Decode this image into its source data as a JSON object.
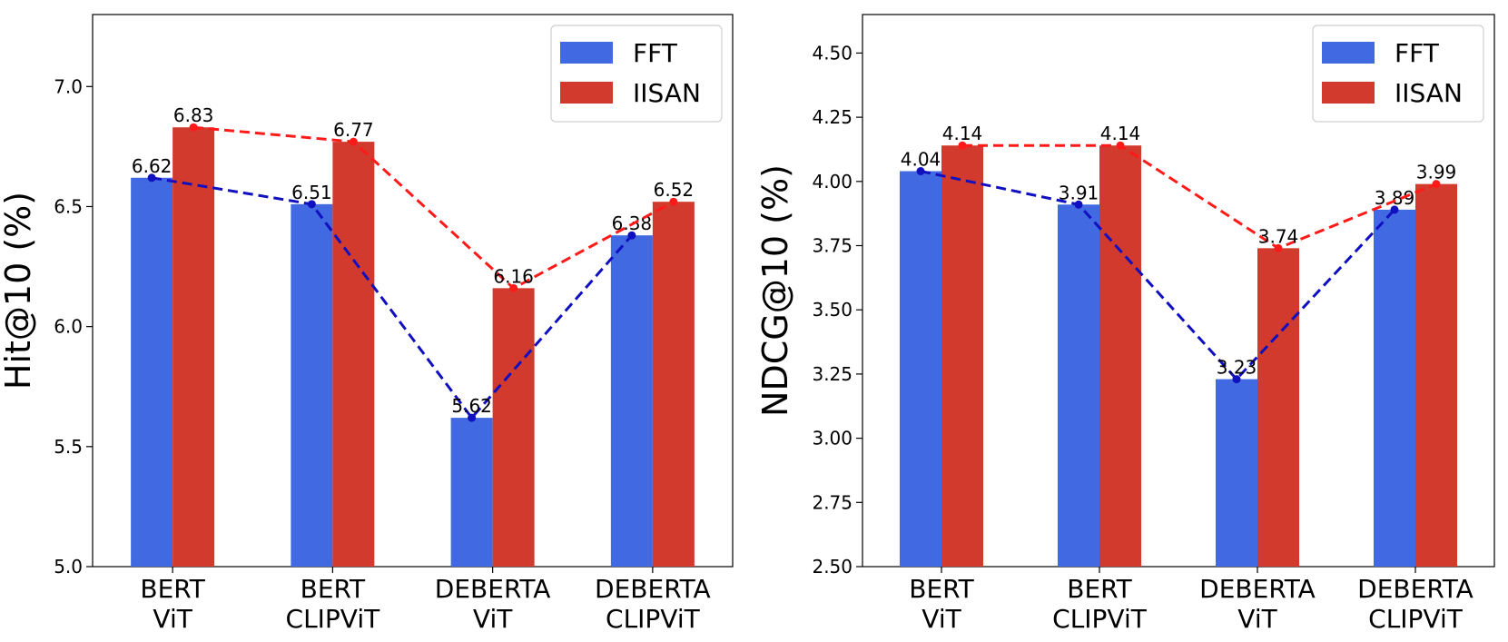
{
  "chart_data": [
    {
      "type": "bar",
      "title": "",
      "xlabel": "",
      "ylabel": "Hit@10 (%)",
      "ylim": [
        5.0,
        7.3
      ],
      "yticks": [
        "5.0",
        "5.5",
        "6.0",
        "6.5",
        "7.0"
      ],
      "categories": [
        [
          "BERT",
          "ViT"
        ],
        [
          "BERT",
          "CLIPViT"
        ],
        [
          "DEBERTA",
          "ViT"
        ],
        [
          "DEBERTA",
          "CLIPViT"
        ]
      ],
      "series": [
        {
          "name": "FFT",
          "values": [
            6.62,
            6.51,
            5.62,
            6.38
          ],
          "labels": [
            "6.62",
            "6.51",
            "5.62",
            "6.38"
          ],
          "color": "#4169e1",
          "line_color": "#1010c0"
        },
        {
          "name": "IISAN",
          "values": [
            6.83,
            6.77,
            6.16,
            6.52
          ],
          "labels": [
            "6.83",
            "6.77",
            "6.16",
            "6.52"
          ],
          "color": "#d13a2c",
          "line_color": "#ff1a1a"
        }
      ],
      "legend": "top-right"
    },
    {
      "type": "bar",
      "title": "",
      "xlabel": "",
      "ylabel": "NDCG@10 (%)",
      "ylim": [
        2.5,
        4.65
      ],
      "yticks": [
        "2.50",
        "2.75",
        "3.00",
        "3.25",
        "3.50",
        "3.75",
        "4.00",
        "4.25",
        "4.50"
      ],
      "categories": [
        [
          "BERT",
          "ViT"
        ],
        [
          "BERT",
          "CLIPViT"
        ],
        [
          "DEBERTA",
          "ViT"
        ],
        [
          "DEBERTA",
          "CLIPViT"
        ]
      ],
      "series": [
        {
          "name": "FFT",
          "values": [
            4.04,
            3.91,
            3.23,
            3.89
          ],
          "labels": [
            "4.04",
            "3.91",
            "3.23",
            "3.89"
          ],
          "color": "#4169e1",
          "line_color": "#1010c0"
        },
        {
          "name": "IISAN",
          "values": [
            4.14,
            4.14,
            3.74,
            3.99
          ],
          "labels": [
            "4.14",
            "4.14",
            "3.74",
            "3.99"
          ],
          "color": "#d13a2c",
          "line_color": "#ff1a1a"
        }
      ],
      "legend": "top-right"
    }
  ]
}
